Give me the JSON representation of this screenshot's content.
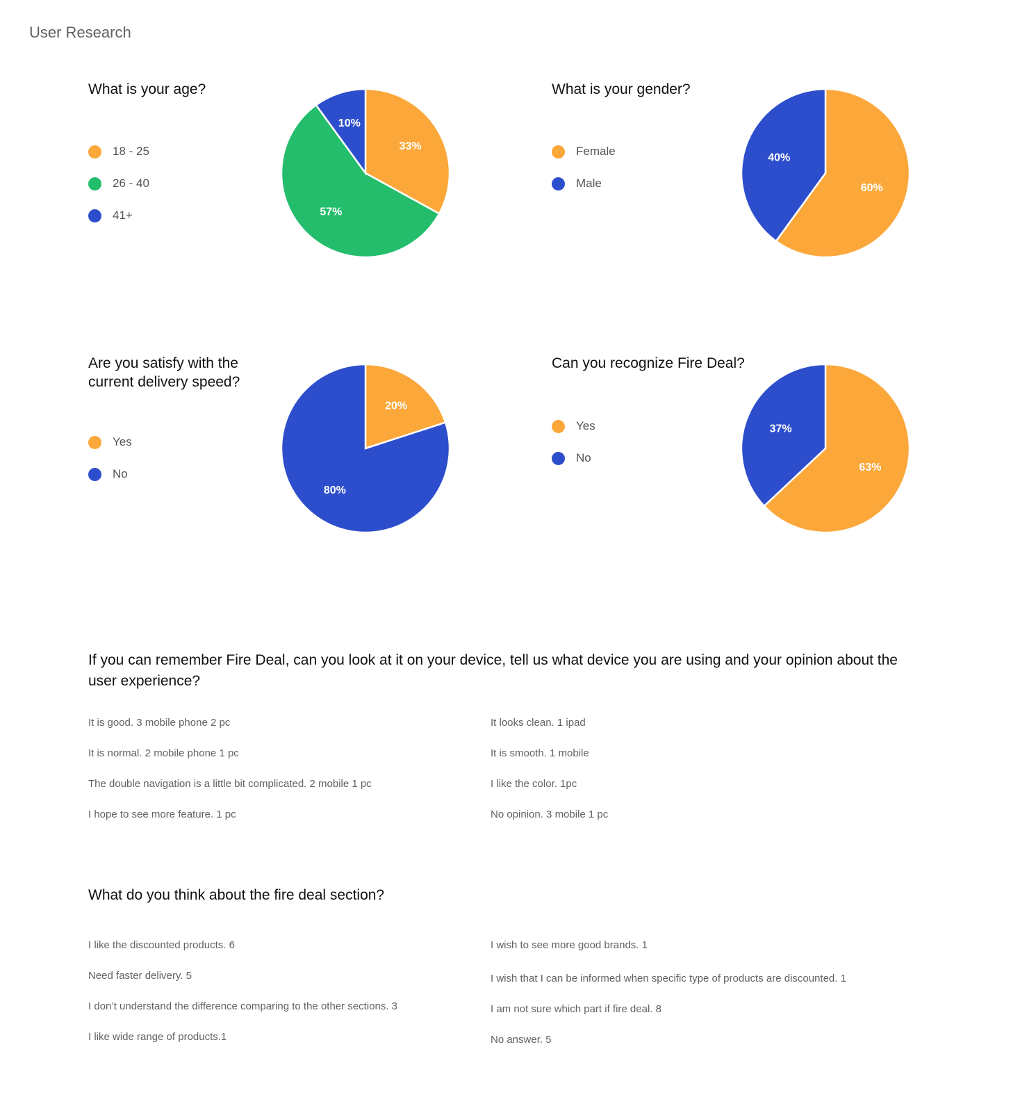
{
  "page_title": "User Research",
  "colors": {
    "orange": "#fba73a",
    "green": "#23bd6c",
    "blue": "#2d4ecc"
  },
  "chart_data": [
    {
      "type": "pie",
      "title": "What is your age?",
      "slices": [
        {
          "label": "18 - 25",
          "value": 33,
          "display": "33%",
          "color": "#fba73a"
        },
        {
          "label": "26 - 40",
          "value": 57,
          "display": "57%",
          "color": "#23bd6c"
        },
        {
          "label": "41+",
          "value": 10,
          "display": "10%",
          "color": "#2d4ecc"
        }
      ]
    },
    {
      "type": "pie",
      "title": "What is your gender?",
      "slices": [
        {
          "label": "Female",
          "value": 60,
          "display": "60%",
          "color": "#fba73a"
        },
        {
          "label": "Male",
          "value": 40,
          "display": "40%",
          "color": "#2d4ecc"
        }
      ]
    },
    {
      "type": "pie",
      "title": "Are you satisfy with the current delivery speed?",
      "slices": [
        {
          "label": "Yes",
          "value": 20,
          "display": "20%",
          "color": "#fba73a"
        },
        {
          "label": "No",
          "value": 80,
          "display": "80%",
          "color": "#2d4ecc"
        }
      ]
    },
    {
      "type": "pie",
      "title": "Can you recognize Fire Deal?",
      "slices": [
        {
          "label": "Yes",
          "value": 63,
          "display": "63%",
          "color": "#fba73a"
        },
        {
          "label": "No",
          "value": 37,
          "display": "37%",
          "color": "#2d4ecc"
        }
      ]
    }
  ],
  "open_questions": [
    {
      "question": "If you can remember Fire Deal, can you look at it on your device, tell us what device you are using and your opinion about the user experience?",
      "left": [
        "It is good.  3 mobile phone 2 pc",
        "It is normal. 2 mobile phone 1 pc",
        "The double navigation is a little bit complicated. 2 mobile 1 pc",
        "I hope to see more feature. 1 pc"
      ],
      "right": [
        "It looks clean. 1 ipad",
        "It is smooth. 1 mobile",
        "I like the color. 1pc",
        "No opinion. 3 mobile 1 pc"
      ]
    },
    {
      "question": "What do you think about the fire deal section?",
      "left": [
        "I like the discounted products.  6",
        "Need faster delivery. 5",
        "I don’t understand the difference comparing to the other sections. 3",
        "I like wide range of products.1"
      ],
      "right": [
        "I wish to see more good brands. 1",
        "I wish that I can be informed when specific type of products are discounted. 1",
        "I am not sure which part if fire deal. 8",
        "No answer. 5"
      ]
    }
  ]
}
